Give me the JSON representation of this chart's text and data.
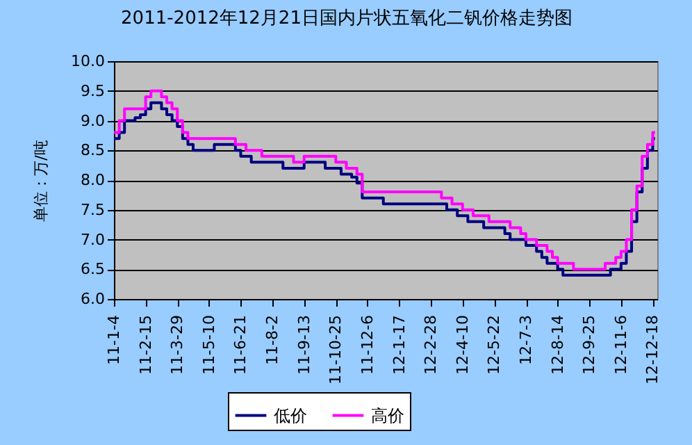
{
  "chart_data": {
    "type": "step",
    "title": "2011-2012年12月21日国内片状五氧化二钒价格走势图",
    "ylabel": "单位：万/吨",
    "xlim": [
      "2011-01-04",
      "2012-12-24"
    ],
    "xticks": [
      {
        "value": "2011-01-04",
        "label": "11-1-4"
      },
      {
        "value": "2011-02-15",
        "label": "11-2-15"
      },
      {
        "value": "2011-03-29",
        "label": "11-3-29"
      },
      {
        "value": "2011-05-10",
        "label": "11-5-10"
      },
      {
        "value": "2011-06-21",
        "label": "11-6-21"
      },
      {
        "value": "2011-08-02",
        "label": "11-8-2"
      },
      {
        "value": "2011-09-13",
        "label": "11-9-13"
      },
      {
        "value": "2011-10-25",
        "label": "11-10-25"
      },
      {
        "value": "2011-12-06",
        "label": "11-12-6"
      },
      {
        "value": "2012-01-17",
        "label": "12-1-17"
      },
      {
        "value": "2012-02-28",
        "label": "12-2-28"
      },
      {
        "value": "2012-04-10",
        "label": "12-4-10"
      },
      {
        "value": "2012-05-22",
        "label": "12-5-22"
      },
      {
        "value": "2012-07-03",
        "label": "12-7-3"
      },
      {
        "value": "2012-08-14",
        "label": "12-8-14"
      },
      {
        "value": "2012-09-25",
        "label": "12-9-25"
      },
      {
        "value": "2012-11-06",
        "label": "12-11-6"
      },
      {
        "value": "2012-12-18",
        "label": "12-12-18"
      }
    ],
    "ylim": [
      6,
      10
    ],
    "yticks": [
      {
        "value": 6,
        "label": "6.0"
      },
      {
        "value": 6.5,
        "label": "6.5"
      },
      {
        "value": 7,
        "label": "7.0"
      },
      {
        "value": 7.5,
        "label": "7.5"
      },
      {
        "value": 8,
        "label": "8.0"
      },
      {
        "value": 8.5,
        "label": "8.5"
      },
      {
        "value": 9,
        "label": "9.0"
      },
      {
        "value": 9.5,
        "label": "9.5"
      },
      {
        "value": 10,
        "label": "10.0"
      }
    ],
    "grid": "y",
    "legend": "bottom",
    "line_style": "solid",
    "series": [
      {
        "name": "低价",
        "color": "#000080",
        "x": [
          "2011-01-04",
          "2011-01-11",
          "2011-01-18",
          "2011-02-01",
          "2011-02-08",
          "2011-02-15",
          "2011-02-22",
          "2011-03-08",
          "2011-03-15",
          "2011-03-22",
          "2011-03-29",
          "2011-04-05",
          "2011-04-12",
          "2011-04-19",
          "2011-05-17",
          "2011-06-14",
          "2011-06-21",
          "2011-07-05",
          "2011-08-16",
          "2011-09-13",
          "2011-10-11",
          "2011-11-01",
          "2011-11-15",
          "2011-11-22",
          "2011-11-29",
          "2011-12-27",
          "2012-03-20",
          "2012-04-03",
          "2012-04-17",
          "2012-05-08",
          "2012-06-05",
          "2012-06-12",
          "2012-07-03",
          "2012-07-17",
          "2012-07-24",
          "2012-07-31",
          "2012-08-14",
          "2012-08-21",
          "2012-10-23",
          "2012-11-06",
          "2012-11-13",
          "2012-11-20",
          "2012-11-27",
          "2012-12-04",
          "2012-12-11",
          "2012-12-18",
          "2012-12-21"
        ],
        "values": [
          8.7,
          8.8,
          9.0,
          9.05,
          9.1,
          9.2,
          9.3,
          9.2,
          9.1,
          9.0,
          8.9,
          8.7,
          8.6,
          8.5,
          8.6,
          8.5,
          8.4,
          8.3,
          8.2,
          8.3,
          8.2,
          8.1,
          8.05,
          7.95,
          7.7,
          7.6,
          7.5,
          7.4,
          7.3,
          7.2,
          7.1,
          7.0,
          6.9,
          6.8,
          6.7,
          6.6,
          6.5,
          6.4,
          6.5,
          6.6,
          6.8,
          7.3,
          7.8,
          8.2,
          8.5,
          8.7,
          8.7
        ]
      },
      {
        "name": "高价",
        "color": "#ff00ff",
        "x": [
          "2011-01-04",
          "2011-01-11",
          "2011-01-18",
          "2011-02-15",
          "2011-02-22",
          "2011-03-08",
          "2011-03-15",
          "2011-03-22",
          "2011-03-29",
          "2011-04-05",
          "2011-04-12",
          "2011-06-14",
          "2011-06-28",
          "2011-07-19",
          "2011-08-30",
          "2011-09-13",
          "2011-10-25",
          "2011-11-08",
          "2011-11-22",
          "2011-11-29",
          "2012-03-13",
          "2012-03-27",
          "2012-04-10",
          "2012-04-24",
          "2012-05-15",
          "2012-06-12",
          "2012-06-26",
          "2012-07-03",
          "2012-07-17",
          "2012-07-31",
          "2012-08-07",
          "2012-08-14",
          "2012-09-04",
          "2012-10-16",
          "2012-10-30",
          "2012-11-06",
          "2012-11-13",
          "2012-11-20",
          "2012-11-27",
          "2012-12-04",
          "2012-12-11",
          "2012-12-18",
          "2012-12-21"
        ],
        "values": [
          8.8,
          9.0,
          9.2,
          9.4,
          9.5,
          9.4,
          9.3,
          9.2,
          9.0,
          8.8,
          8.7,
          8.6,
          8.5,
          8.4,
          8.3,
          8.4,
          8.3,
          8.2,
          8.1,
          7.8,
          7.7,
          7.6,
          7.5,
          7.4,
          7.3,
          7.2,
          7.1,
          7.0,
          6.9,
          6.8,
          6.7,
          6.6,
          6.5,
          6.6,
          6.7,
          6.8,
          7.0,
          7.5,
          7.9,
          8.4,
          8.6,
          8.8,
          8.8
        ]
      }
    ]
  }
}
